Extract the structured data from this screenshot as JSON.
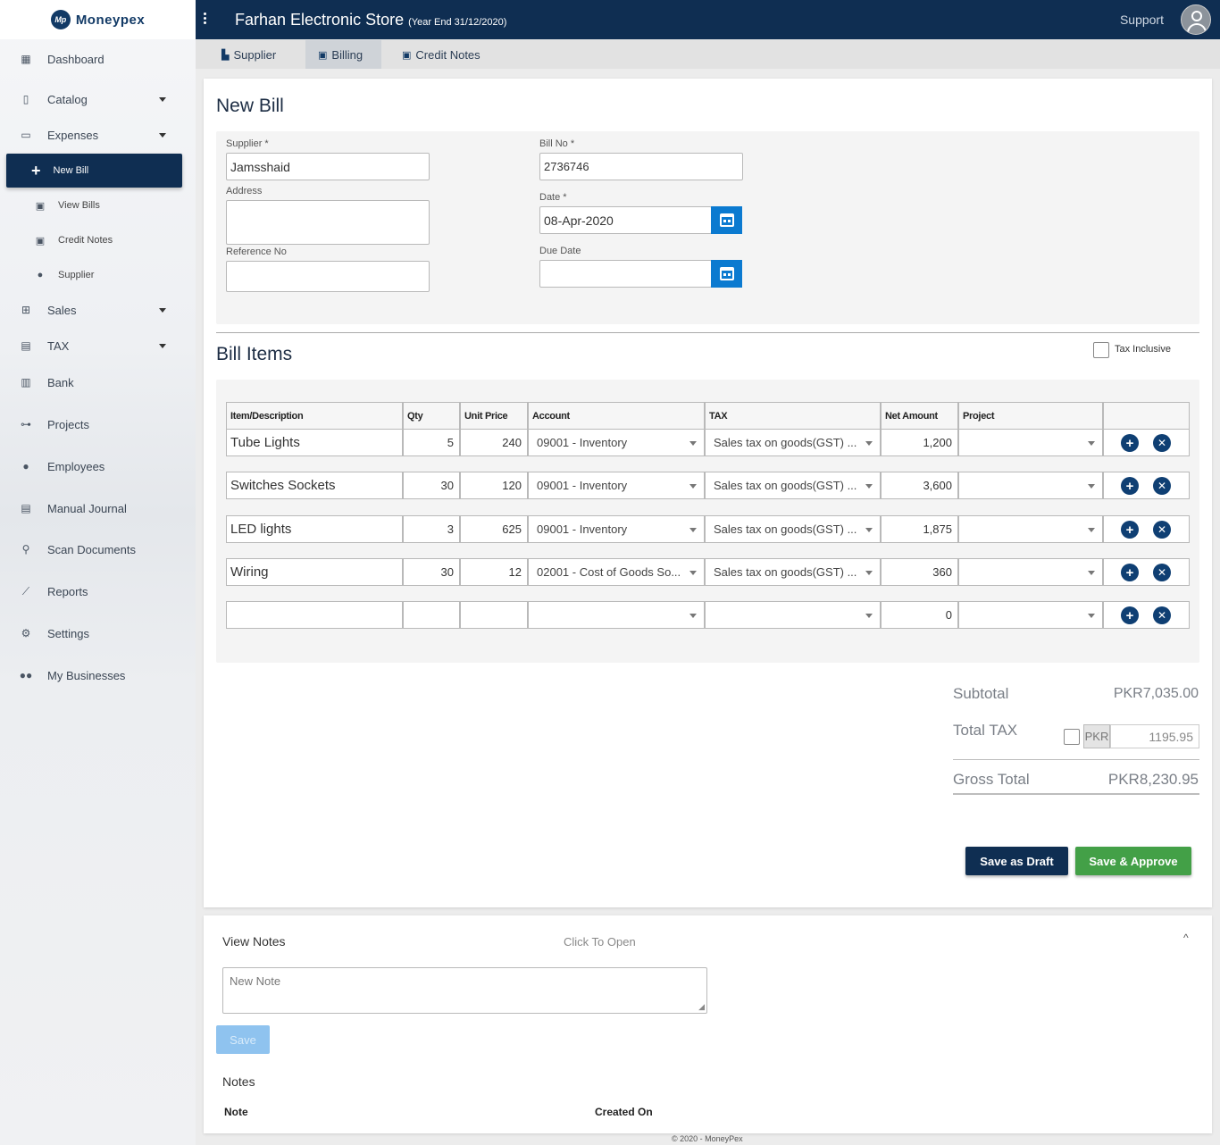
{
  "brand": {
    "logo_mark": "Mp",
    "name": "Moneypex"
  },
  "header": {
    "store_name": "Farhan Electronic Store",
    "year_end": "(Year End 31/12/2020)",
    "support_label": "Support"
  },
  "sidebar": {
    "dashboard": "Dashboard",
    "catalog": "Catalog",
    "expenses": "Expenses",
    "new_bill": "New Bill",
    "view_bills": "View Bills",
    "credit_notes": "Credit Notes",
    "supplier": "Supplier",
    "sales": "Sales",
    "tax": "TAX",
    "bank": "Bank",
    "projects": "Projects",
    "employees": "Employees",
    "manual_journal": "Manual Journal",
    "scan_documents": "Scan Documents",
    "reports": "Reports",
    "settings": "Settings",
    "my_businesses": "My Businesses"
  },
  "tabs": {
    "supplier": "Supplier",
    "billing": "Billing",
    "credit_notes": "Credit Notes"
  },
  "bill_form": {
    "title": "New Bill",
    "supplier_label": "Supplier *",
    "supplier_value": "Jamsshaid",
    "address_label": "Address",
    "address_value": "",
    "reference_label": "Reference No",
    "reference_value": "",
    "bill_no_label": "Bill No *",
    "bill_no_value": "2736746",
    "date_label": "Date *",
    "date_value": "08-Apr-2020",
    "due_date_label": "Due Date",
    "due_date_value": ""
  },
  "bill_items": {
    "title": "Bill Items",
    "tax_inclusive_label": "Tax Inclusive",
    "columns": {
      "item": "Item/Description",
      "qty": "Qty",
      "unit_price": "Unit Price",
      "account": "Account",
      "tax": "TAX",
      "net_amount": "Net Amount",
      "project": "Project"
    },
    "rows": [
      {
        "desc": "Tube Lights",
        "qty": "5",
        "price": "240",
        "account": "09001 - Inventory",
        "tax": "Sales tax on goods(GST) ...",
        "net": "1,200",
        "project": ""
      },
      {
        "desc": "Switches Sockets",
        "qty": "30",
        "price": "120",
        "account": "09001 - Inventory",
        "tax": "Sales tax on goods(GST) ...",
        "net": "3,600",
        "project": ""
      },
      {
        "desc": "LED lights",
        "qty": "3",
        "price": "625",
        "account": "09001 - Inventory",
        "tax": "Sales tax on goods(GST) ...",
        "net": "1,875",
        "project": ""
      },
      {
        "desc": "Wiring",
        "qty": "30",
        "price": "12",
        "account": "02001 - Cost of Goods So...",
        "tax": "Sales tax on goods(GST) ...",
        "net": "360",
        "project": ""
      },
      {
        "desc": "",
        "qty": "",
        "price": "",
        "account": "",
        "tax": "",
        "net": "0",
        "project": ""
      }
    ]
  },
  "totals": {
    "subtotal_label": "Subtotal",
    "subtotal_value": "PKR7,035.00",
    "tax_label": "Total TAX",
    "tax_currency": "PKR",
    "tax_value": "1195.95",
    "gross_label": "Gross Total",
    "gross_value": "PKR8,230.95"
  },
  "actions": {
    "save_draft": "Save as Draft",
    "save_approve": "Save & Approve"
  },
  "notes": {
    "title": "View Notes",
    "toggle_hint": "Click To Open",
    "placeholder": "New Note",
    "save_label": "Save",
    "list_title": "Notes",
    "col_note": "Note",
    "col_created": "Created On"
  },
  "footer": {
    "text": "© 2020 - MoneyPex"
  },
  "colors": {
    "primary": "#0f2e52",
    "accent_blue": "#0b7ad0",
    "approve_green": "#43a047"
  }
}
